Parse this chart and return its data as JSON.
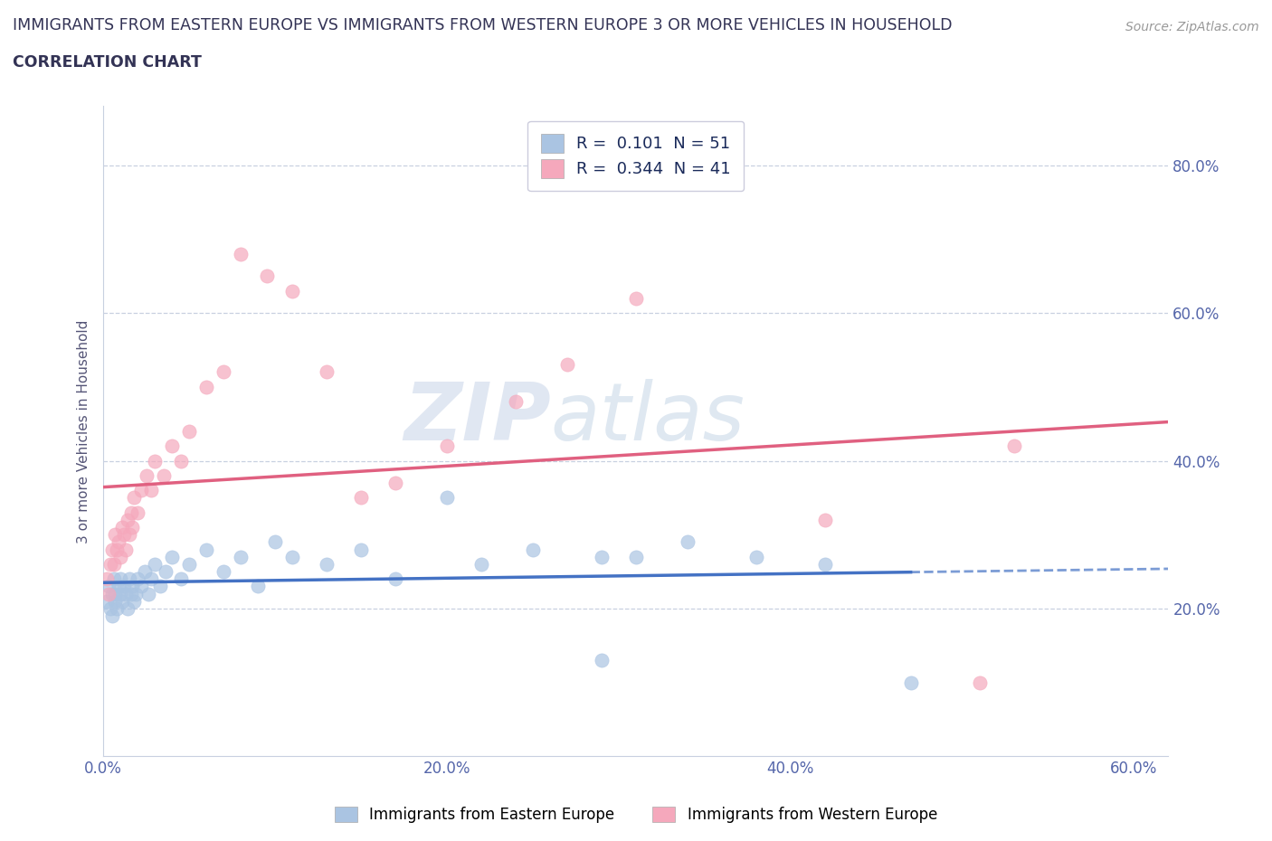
{
  "title_line1": "IMMIGRANTS FROM EASTERN EUROPE VS IMMIGRANTS FROM WESTERN EUROPE 3 OR MORE VEHICLES IN HOUSEHOLD",
  "title_line2": "CORRELATION CHART",
  "source": "Source: ZipAtlas.com",
  "ylabel": "3 or more Vehicles in Household",
  "xlim": [
    0.0,
    0.62
  ],
  "ylim": [
    0.0,
    0.88
  ],
  "xtick_labels": [
    "0.0%",
    "20.0%",
    "40.0%",
    "60.0%"
  ],
  "xtick_vals": [
    0.0,
    0.2,
    0.4,
    0.6
  ],
  "ytick_labels": [
    "20.0%",
    "40.0%",
    "60.0%",
    "80.0%"
  ],
  "ytick_vals": [
    0.2,
    0.4,
    0.6,
    0.8
  ],
  "legend_entry1": "R =  0.101  N = 51",
  "legend_entry2": "R =  0.344  N = 41",
  "color_blue": "#aac4e2",
  "color_pink": "#f5a8bc",
  "line_color_blue": "#4472c4",
  "line_color_pink": "#e06080",
  "watermark_zip": "ZIP",
  "watermark_atlas": "atlas",
  "eastern_europe_x": [
    0.002,
    0.003,
    0.004,
    0.005,
    0.005,
    0.006,
    0.007,
    0.007,
    0.008,
    0.009,
    0.01,
    0.01,
    0.011,
    0.012,
    0.013,
    0.014,
    0.015,
    0.016,
    0.017,
    0.018,
    0.019,
    0.02,
    0.022,
    0.024,
    0.026,
    0.028,
    0.03,
    0.033,
    0.036,
    0.04,
    0.045,
    0.05,
    0.06,
    0.07,
    0.08,
    0.09,
    0.1,
    0.11,
    0.13,
    0.15,
    0.17,
    0.2,
    0.22,
    0.25,
    0.29,
    0.31,
    0.34,
    0.38,
    0.29,
    0.42,
    0.47
  ],
  "eastern_europe_y": [
    0.21,
    0.23,
    0.2,
    0.22,
    0.19,
    0.24,
    0.21,
    0.22,
    0.2,
    0.23,
    0.22,
    0.24,
    0.21,
    0.23,
    0.22,
    0.2,
    0.24,
    0.22,
    0.23,
    0.21,
    0.22,
    0.24,
    0.23,
    0.25,
    0.22,
    0.24,
    0.26,
    0.23,
    0.25,
    0.27,
    0.24,
    0.26,
    0.28,
    0.25,
    0.27,
    0.23,
    0.29,
    0.27,
    0.26,
    0.28,
    0.24,
    0.35,
    0.26,
    0.28,
    0.27,
    0.27,
    0.29,
    0.27,
    0.13,
    0.26,
    0.1
  ],
  "western_europe_x": [
    0.002,
    0.003,
    0.004,
    0.005,
    0.006,
    0.007,
    0.008,
    0.009,
    0.01,
    0.011,
    0.012,
    0.013,
    0.014,
    0.015,
    0.016,
    0.017,
    0.018,
    0.02,
    0.022,
    0.025,
    0.028,
    0.03,
    0.035,
    0.04,
    0.045,
    0.05,
    0.06,
    0.07,
    0.08,
    0.095,
    0.11,
    0.13,
    0.15,
    0.17,
    0.2,
    0.24,
    0.27,
    0.31,
    0.42,
    0.51,
    0.53
  ],
  "western_europe_y": [
    0.24,
    0.22,
    0.26,
    0.28,
    0.26,
    0.3,
    0.28,
    0.29,
    0.27,
    0.31,
    0.3,
    0.28,
    0.32,
    0.3,
    0.33,
    0.31,
    0.35,
    0.33,
    0.36,
    0.38,
    0.36,
    0.4,
    0.38,
    0.42,
    0.4,
    0.44,
    0.5,
    0.52,
    0.68,
    0.65,
    0.63,
    0.52,
    0.35,
    0.37,
    0.42,
    0.48,
    0.53,
    0.62,
    0.32,
    0.1,
    0.42
  ]
}
